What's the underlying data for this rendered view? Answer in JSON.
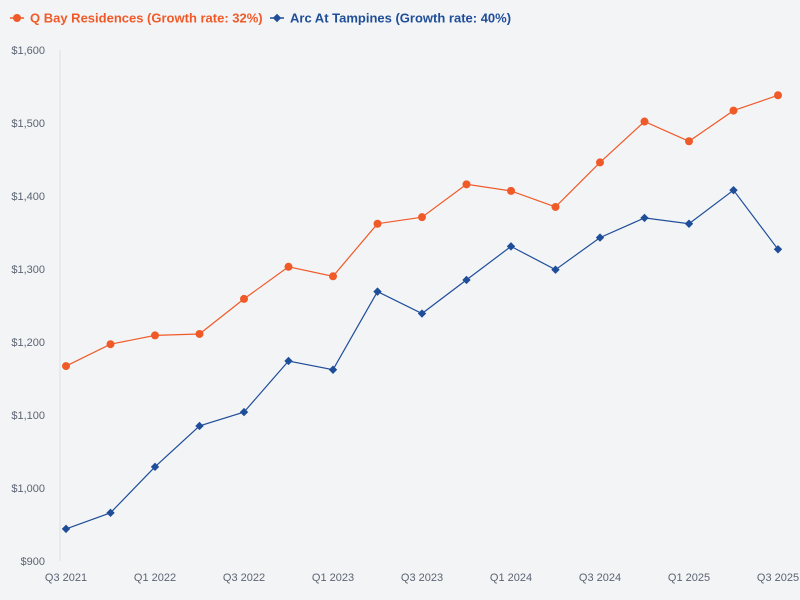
{
  "chart_data": {
    "type": "line",
    "title": "",
    "xlabel": "",
    "ylabel": "",
    "ylim": [
      900,
      1600
    ],
    "yticks": [
      900,
      1000,
      1100,
      1200,
      1300,
      1400,
      1500,
      1600
    ],
    "ytick_labels": [
      "$900",
      "$1,000",
      "$1,100",
      "$1,200",
      "$1,300",
      "$1,400",
      "$1,500",
      "$1,600"
    ],
    "categories": [
      "Q3 2021",
      "Q4 2021",
      "Q1 2022",
      "Q2 2022",
      "Q3 2022",
      "Q4 2022",
      "Q1 2023",
      "Q2 2023",
      "Q3 2023",
      "Q4 2023",
      "Q1 2024",
      "Q2 2024",
      "Q3 2024",
      "Q4 2024",
      "Q1 2025",
      "Q2 2025",
      "Q3 2025"
    ],
    "xtick_labels": [
      "Q3 2021",
      "",
      "Q1 2022",
      "",
      "Q3 2022",
      "",
      "Q1 2023",
      "",
      "Q3 2023",
      "",
      "Q1 2024",
      "",
      "Q3 2024",
      "",
      "Q1 2025",
      "",
      "Q3 2025"
    ],
    "grid": false,
    "legend_position": "top-left",
    "series": [
      {
        "name": "Q Bay Residences (Growth rate: 32%)",
        "color": "#f05a28",
        "marker": "circle",
        "values": [
          1167,
          1197,
          1209,
          1211,
          1259,
          1303,
          1290,
          1362,
          1371,
          1416,
          1407,
          1385,
          1446,
          1502,
          1475,
          1517,
          1538
        ]
      },
      {
        "name": "Arc At Tampines (Growth rate: 40%)",
        "color": "#1f4e99",
        "marker": "diamond",
        "values": [
          944,
          966,
          1029,
          1085,
          1104,
          1174,
          1162,
          1269,
          1239,
          1285,
          1331,
          1299,
          1343,
          1370,
          1362,
          1408,
          1327
        ]
      }
    ]
  }
}
